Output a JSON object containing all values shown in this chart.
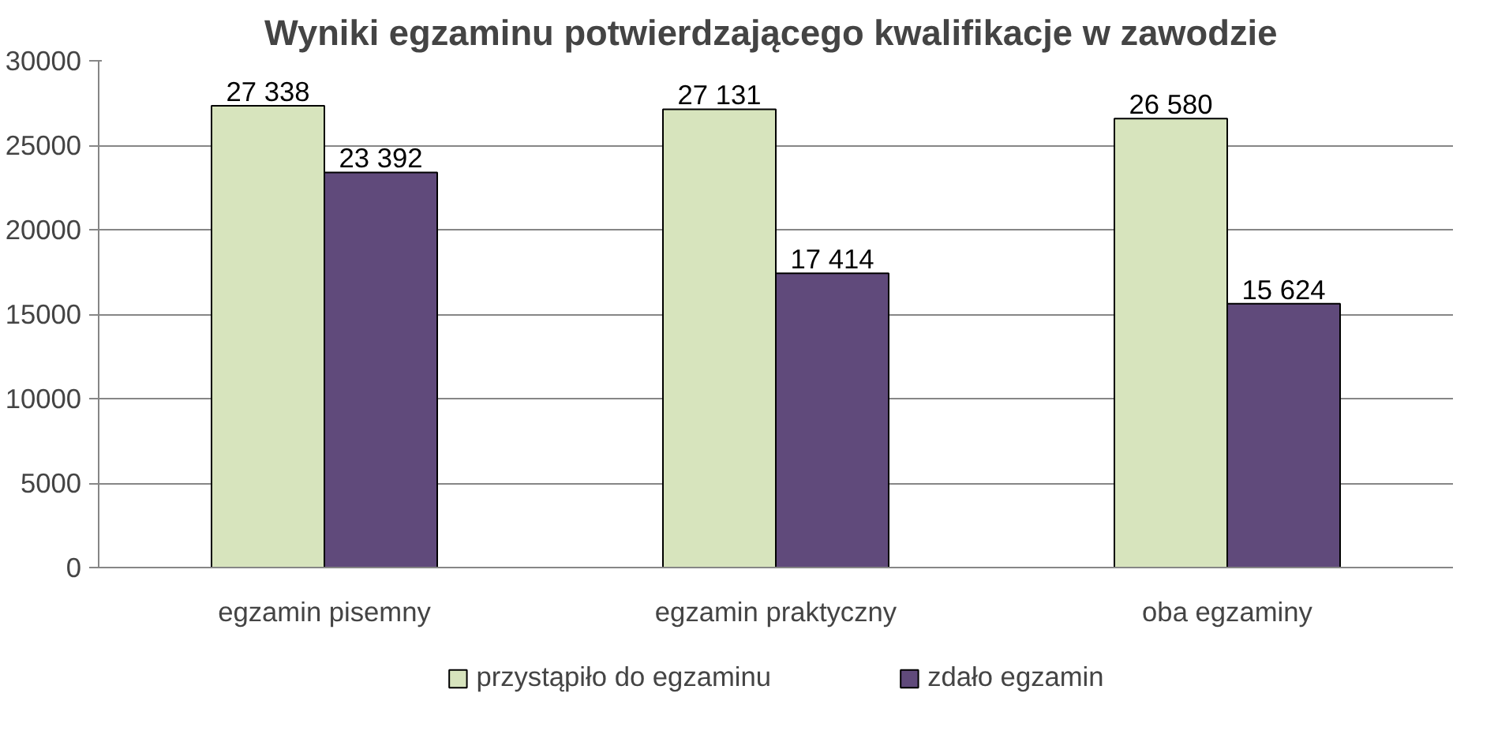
{
  "chart_data": {
    "type": "bar",
    "title": "Wyniki  egzaminu potwierdzającego kwalifikacje w zawodzie",
    "categories": [
      "egzamin pisemny",
      "egzamin praktyczny",
      "oba egzaminy"
    ],
    "series": [
      {
        "name": "przystąpiło do egzaminu",
        "color": "#d7e4bd",
        "values": [
          27338,
          27131,
          26580
        ],
        "value_labels": [
          "27 338",
          "27 131",
          "26 580"
        ]
      },
      {
        "name": "zdało egzamin",
        "color": "#604a7b",
        "values": [
          23392,
          17414,
          15624
        ],
        "value_labels": [
          "23 392",
          "17 414",
          "15 624"
        ]
      }
    ],
    "ylim": [
      0,
      30000
    ],
    "yticks": [
      0,
      5000,
      10000,
      15000,
      20000,
      25000,
      30000
    ],
    "grid": "y",
    "legend": "bottom"
  }
}
